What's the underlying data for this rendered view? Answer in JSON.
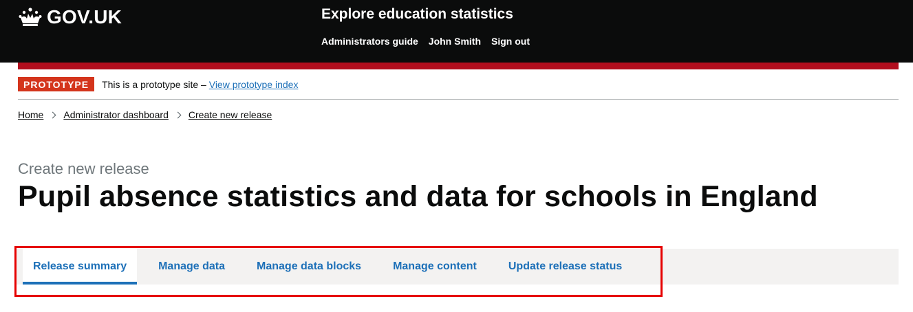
{
  "header": {
    "logo_text": "GOV.UK",
    "service_name": "Explore education statistics",
    "nav": [
      {
        "label": "Administrators guide"
      },
      {
        "label": "John Smith"
      },
      {
        "label": "Sign out"
      }
    ]
  },
  "phase_banner": {
    "tag": "PROTOTYPE",
    "text": "This is a prototype site – ",
    "link": "View prototype index"
  },
  "breadcrumb": [
    {
      "label": "Home"
    },
    {
      "label": "Administrator dashboard"
    },
    {
      "label": "Create new release"
    }
  ],
  "page": {
    "caption": "Create new release",
    "title": "Pupil absence statistics and data for schools in England"
  },
  "tabs": [
    {
      "label": "Release summary",
      "active": true
    },
    {
      "label": "Manage data",
      "active": false
    },
    {
      "label": "Manage data blocks",
      "active": false
    },
    {
      "label": "Manage content",
      "active": false
    },
    {
      "label": "Update release status",
      "active": false
    }
  ],
  "colors": {
    "header_bg": "#0b0c0c",
    "brand_bar": "#b10e1e",
    "phase_tag": "#d4351c",
    "link": "#1d70b8",
    "highlight": "#e60000"
  }
}
